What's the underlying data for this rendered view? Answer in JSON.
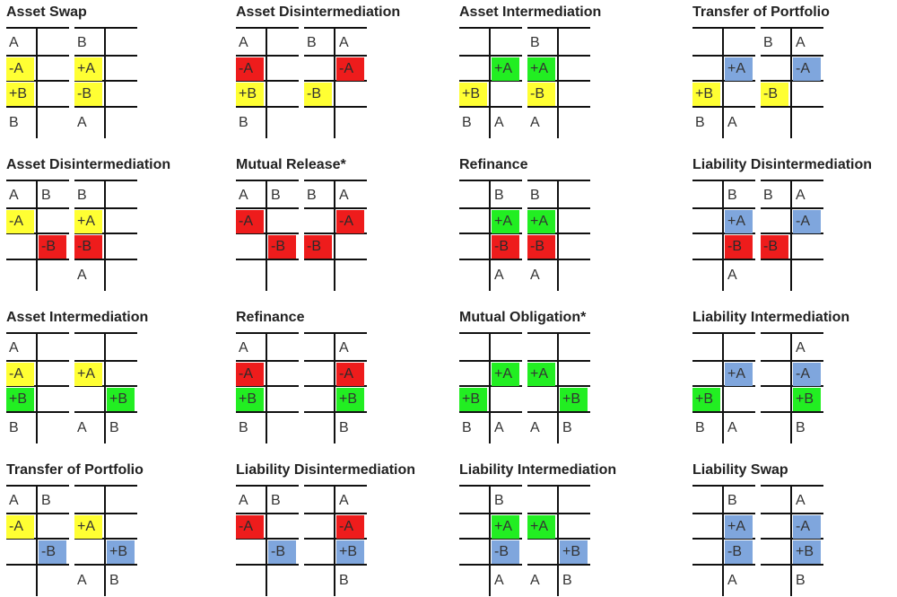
{
  "colors": {
    "yellow": "#ffff33",
    "red": "#ee1c1c",
    "green": "#22ee22",
    "blue": "#7fa6dd",
    "line": "#111111"
  },
  "diagrams": [
    {
      "title": "Asset Swap",
      "accounts": [
        {
          "cells": [
            {
              "row": 0,
              "side": "left",
              "text": "A"
            },
            {
              "row": 1,
              "side": "left",
              "text": "-A",
              "color": "yellow"
            },
            {
              "row": 2,
              "side": "left",
              "text": "+B",
              "color": "yellow"
            },
            {
              "row": 3,
              "side": "left",
              "text": "B"
            }
          ]
        },
        {
          "cells": [
            {
              "row": 0,
              "side": "left",
              "text": "B"
            },
            {
              "row": 1,
              "side": "left",
              "text": "+A",
              "color": "yellow"
            },
            {
              "row": 2,
              "side": "left",
              "text": "-B",
              "color": "yellow"
            },
            {
              "row": 3,
              "side": "left",
              "text": "A"
            }
          ]
        }
      ]
    },
    {
      "title": "Asset Disintermediation",
      "accounts": [
        {
          "cells": [
            {
              "row": 0,
              "side": "left",
              "text": "A"
            },
            {
              "row": 1,
              "side": "left",
              "text": "-A",
              "color": "red"
            },
            {
              "row": 2,
              "side": "left",
              "text": "+B",
              "color": "yellow"
            },
            {
              "row": 3,
              "side": "left",
              "text": "B"
            }
          ]
        },
        {
          "cells": [
            {
              "row": 0,
              "side": "left",
              "text": "B"
            },
            {
              "row": 0,
              "side": "right",
              "text": "A"
            },
            {
              "row": 1,
              "side": "right",
              "text": "-A",
              "color": "red"
            },
            {
              "row": 2,
              "side": "left",
              "text": "-B",
              "color": "yellow"
            }
          ]
        }
      ]
    },
    {
      "title": "Asset Intermediation",
      "accounts": [
        {
          "cells": [
            {
              "row": 1,
              "side": "right",
              "text": "+A",
              "color": "green"
            },
            {
              "row": 2,
              "side": "left",
              "text": "+B",
              "color": "yellow"
            },
            {
              "row": 3,
              "side": "left",
              "text": "B"
            },
            {
              "row": 3,
              "side": "right",
              "text": "A"
            }
          ]
        },
        {
          "cells": [
            {
              "row": 0,
              "side": "left",
              "text": "B"
            },
            {
              "row": 1,
              "side": "left",
              "text": "+A",
              "color": "green"
            },
            {
              "row": 2,
              "side": "left",
              "text": "-B",
              "color": "yellow"
            },
            {
              "row": 3,
              "side": "left",
              "text": "A"
            }
          ]
        }
      ]
    },
    {
      "title": "Transfer of Portfolio",
      "accounts": [
        {
          "cells": [
            {
              "row": 1,
              "side": "right",
              "text": "+A",
              "color": "blue"
            },
            {
              "row": 2,
              "side": "left",
              "text": "+B",
              "color": "yellow"
            },
            {
              "row": 3,
              "side": "left",
              "text": "B"
            },
            {
              "row": 3,
              "side": "right",
              "text": "A"
            }
          ]
        },
        {
          "cells": [
            {
              "row": 0,
              "side": "left",
              "text": "B"
            },
            {
              "row": 0,
              "side": "right",
              "text": "A"
            },
            {
              "row": 1,
              "side": "right",
              "text": "-A",
              "color": "blue"
            },
            {
              "row": 2,
              "side": "left",
              "text": "-B",
              "color": "yellow"
            }
          ]
        }
      ]
    },
    {
      "title": "Asset Disintermediation",
      "accounts": [
        {
          "cells": [
            {
              "row": 0,
              "side": "left",
              "text": "A"
            },
            {
              "row": 0,
              "side": "right",
              "text": "B"
            },
            {
              "row": 1,
              "side": "left",
              "text": "-A",
              "color": "yellow"
            },
            {
              "row": 2,
              "side": "right",
              "text": "-B",
              "color": "red"
            }
          ]
        },
        {
          "cells": [
            {
              "row": 0,
              "side": "left",
              "text": "B"
            },
            {
              "row": 1,
              "side": "left",
              "text": "+A",
              "color": "yellow"
            },
            {
              "row": 2,
              "side": "left",
              "text": "-B",
              "color": "red"
            },
            {
              "row": 3,
              "side": "left",
              "text": "A"
            }
          ]
        }
      ]
    },
    {
      "title": "Mutual Release*",
      "accounts": [
        {
          "cells": [
            {
              "row": 0,
              "side": "left",
              "text": "A"
            },
            {
              "row": 0,
              "side": "right",
              "text": "B"
            },
            {
              "row": 1,
              "side": "left",
              "text": "-A",
              "color": "red"
            },
            {
              "row": 2,
              "side": "right",
              "text": "-B",
              "color": "red"
            }
          ]
        },
        {
          "cells": [
            {
              "row": 0,
              "side": "left",
              "text": "B"
            },
            {
              "row": 0,
              "side": "right",
              "text": "A"
            },
            {
              "row": 1,
              "side": "right",
              "text": "-A",
              "color": "red"
            },
            {
              "row": 2,
              "side": "left",
              "text": "-B",
              "color": "red"
            }
          ]
        }
      ]
    },
    {
      "title": "Refinance",
      "accounts": [
        {
          "cells": [
            {
              "row": 0,
              "side": "right",
              "text": "B"
            },
            {
              "row": 1,
              "side": "right",
              "text": "+A",
              "color": "green"
            },
            {
              "row": 2,
              "side": "right",
              "text": "-B",
              "color": "red"
            },
            {
              "row": 3,
              "side": "right",
              "text": "A"
            }
          ]
        },
        {
          "cells": [
            {
              "row": 0,
              "side": "left",
              "text": "B"
            },
            {
              "row": 1,
              "side": "left",
              "text": "+A",
              "color": "green"
            },
            {
              "row": 2,
              "side": "left",
              "text": "-B",
              "color": "red"
            },
            {
              "row": 3,
              "side": "left",
              "text": "A"
            }
          ]
        }
      ]
    },
    {
      "title": "Liability Disintermediation",
      "accounts": [
        {
          "cells": [
            {
              "row": 0,
              "side": "right",
              "text": "B"
            },
            {
              "row": 1,
              "side": "right",
              "text": "+A",
              "color": "blue"
            },
            {
              "row": 2,
              "side": "right",
              "text": "-B",
              "color": "red"
            },
            {
              "row": 3,
              "side": "right",
              "text": "A"
            }
          ]
        },
        {
          "cells": [
            {
              "row": 0,
              "side": "left",
              "text": "B"
            },
            {
              "row": 0,
              "side": "right",
              "text": "A"
            },
            {
              "row": 1,
              "side": "right",
              "text": "-A",
              "color": "blue"
            },
            {
              "row": 2,
              "side": "left",
              "text": "-B",
              "color": "red"
            }
          ]
        }
      ]
    },
    {
      "title": "Asset Intermediation",
      "accounts": [
        {
          "cells": [
            {
              "row": 0,
              "side": "left",
              "text": "A"
            },
            {
              "row": 1,
              "side": "left",
              "text": "-A",
              "color": "yellow"
            },
            {
              "row": 2,
              "side": "left",
              "text": "+B",
              "color": "green"
            },
            {
              "row": 3,
              "side": "left",
              "text": "B"
            }
          ]
        },
        {
          "cells": [
            {
              "row": 1,
              "side": "left",
              "text": "+A",
              "color": "yellow"
            },
            {
              "row": 2,
              "side": "right",
              "text": "+B",
              "color": "green"
            },
            {
              "row": 3,
              "side": "left",
              "text": "A"
            },
            {
              "row": 3,
              "side": "right",
              "text": "B"
            }
          ]
        }
      ]
    },
    {
      "title": "Refinance",
      "accounts": [
        {
          "cells": [
            {
              "row": 0,
              "side": "left",
              "text": "A"
            },
            {
              "row": 1,
              "side": "left",
              "text": "-A",
              "color": "red"
            },
            {
              "row": 2,
              "side": "left",
              "text": "+B",
              "color": "green"
            },
            {
              "row": 3,
              "side": "left",
              "text": "B"
            }
          ]
        },
        {
          "cells": [
            {
              "row": 0,
              "side": "right",
              "text": "A"
            },
            {
              "row": 1,
              "side": "right",
              "text": "-A",
              "color": "red"
            },
            {
              "row": 2,
              "side": "right",
              "text": "+B",
              "color": "green"
            },
            {
              "row": 3,
              "side": "right",
              "text": "B"
            }
          ]
        }
      ]
    },
    {
      "title": "Mutual Obligation*",
      "accounts": [
        {
          "cells": [
            {
              "row": 1,
              "side": "right",
              "text": "+A",
              "color": "green"
            },
            {
              "row": 2,
              "side": "left",
              "text": "+B",
              "color": "green"
            },
            {
              "row": 3,
              "side": "left",
              "text": "B"
            },
            {
              "row": 3,
              "side": "right",
              "text": "A"
            }
          ]
        },
        {
          "cells": [
            {
              "row": 1,
              "side": "left",
              "text": "+A",
              "color": "green"
            },
            {
              "row": 2,
              "side": "right",
              "text": "+B",
              "color": "green"
            },
            {
              "row": 3,
              "side": "left",
              "text": "A"
            },
            {
              "row": 3,
              "side": "right",
              "text": "B"
            }
          ]
        }
      ]
    },
    {
      "title": "Liability Intermediation",
      "accounts": [
        {
          "cells": [
            {
              "row": 1,
              "side": "right",
              "text": "+A",
              "color": "blue"
            },
            {
              "row": 2,
              "side": "left",
              "text": "+B",
              "color": "green"
            },
            {
              "row": 3,
              "side": "left",
              "text": "B"
            },
            {
              "row": 3,
              "side": "right",
              "text": "A"
            }
          ]
        },
        {
          "cells": [
            {
              "row": 0,
              "side": "right",
              "text": "A"
            },
            {
              "row": 1,
              "side": "right",
              "text": "-A",
              "color": "blue"
            },
            {
              "row": 2,
              "side": "right",
              "text": "+B",
              "color": "green"
            },
            {
              "row": 3,
              "side": "right",
              "text": "B"
            }
          ]
        }
      ]
    },
    {
      "title": "Transfer of Portfolio",
      "accounts": [
        {
          "cells": [
            {
              "row": 0,
              "side": "left",
              "text": "A"
            },
            {
              "row": 0,
              "side": "right",
              "text": "B"
            },
            {
              "row": 1,
              "side": "left",
              "text": "-A",
              "color": "yellow"
            },
            {
              "row": 2,
              "side": "right",
              "text": "-B",
              "color": "blue"
            }
          ]
        },
        {
          "cells": [
            {
              "row": 1,
              "side": "left",
              "text": "+A",
              "color": "yellow"
            },
            {
              "row": 2,
              "side": "right",
              "text": "+B",
              "color": "blue"
            },
            {
              "row": 3,
              "side": "left",
              "text": "A"
            },
            {
              "row": 3,
              "side": "right",
              "text": "B"
            }
          ]
        }
      ]
    },
    {
      "title": "Liability Disintermediation",
      "accounts": [
        {
          "cells": [
            {
              "row": 0,
              "side": "left",
              "text": "A"
            },
            {
              "row": 0,
              "side": "right",
              "text": "B"
            },
            {
              "row": 1,
              "side": "left",
              "text": "-A",
              "color": "red"
            },
            {
              "row": 2,
              "side": "right",
              "text": "-B",
              "color": "blue"
            }
          ]
        },
        {
          "cells": [
            {
              "row": 0,
              "side": "right",
              "text": "A"
            },
            {
              "row": 1,
              "side": "right",
              "text": "-A",
              "color": "red"
            },
            {
              "row": 2,
              "side": "right",
              "text": "+B",
              "color": "blue"
            },
            {
              "row": 3,
              "side": "right",
              "text": "B"
            }
          ]
        }
      ]
    },
    {
      "title": "Liability Intermediation",
      "accounts": [
        {
          "cells": [
            {
              "row": 0,
              "side": "right",
              "text": "B"
            },
            {
              "row": 1,
              "side": "right",
              "text": "+A",
              "color": "green"
            },
            {
              "row": 2,
              "side": "right",
              "text": "-B",
              "color": "blue"
            },
            {
              "row": 3,
              "side": "right",
              "text": "A"
            }
          ]
        },
        {
          "cells": [
            {
              "row": 1,
              "side": "left",
              "text": "+A",
              "color": "green"
            },
            {
              "row": 2,
              "side": "right",
              "text": "+B",
              "color": "blue"
            },
            {
              "row": 3,
              "side": "left",
              "text": "A"
            },
            {
              "row": 3,
              "side": "right",
              "text": "B"
            }
          ]
        }
      ]
    },
    {
      "title": "Liability Swap",
      "accounts": [
        {
          "cells": [
            {
              "row": 0,
              "side": "right",
              "text": "B"
            },
            {
              "row": 1,
              "side": "right",
              "text": "+A",
              "color": "blue"
            },
            {
              "row": 2,
              "side": "right",
              "text": "-B",
              "color": "blue"
            },
            {
              "row": 3,
              "side": "right",
              "text": "A"
            }
          ]
        },
        {
          "cells": [
            {
              "row": 0,
              "side": "right",
              "text": "A"
            },
            {
              "row": 1,
              "side": "right",
              "text": "-A",
              "color": "blue"
            },
            {
              "row": 2,
              "side": "right",
              "text": "+B",
              "color": "blue"
            },
            {
              "row": 3,
              "side": "right",
              "text": "B"
            }
          ]
        }
      ]
    }
  ]
}
